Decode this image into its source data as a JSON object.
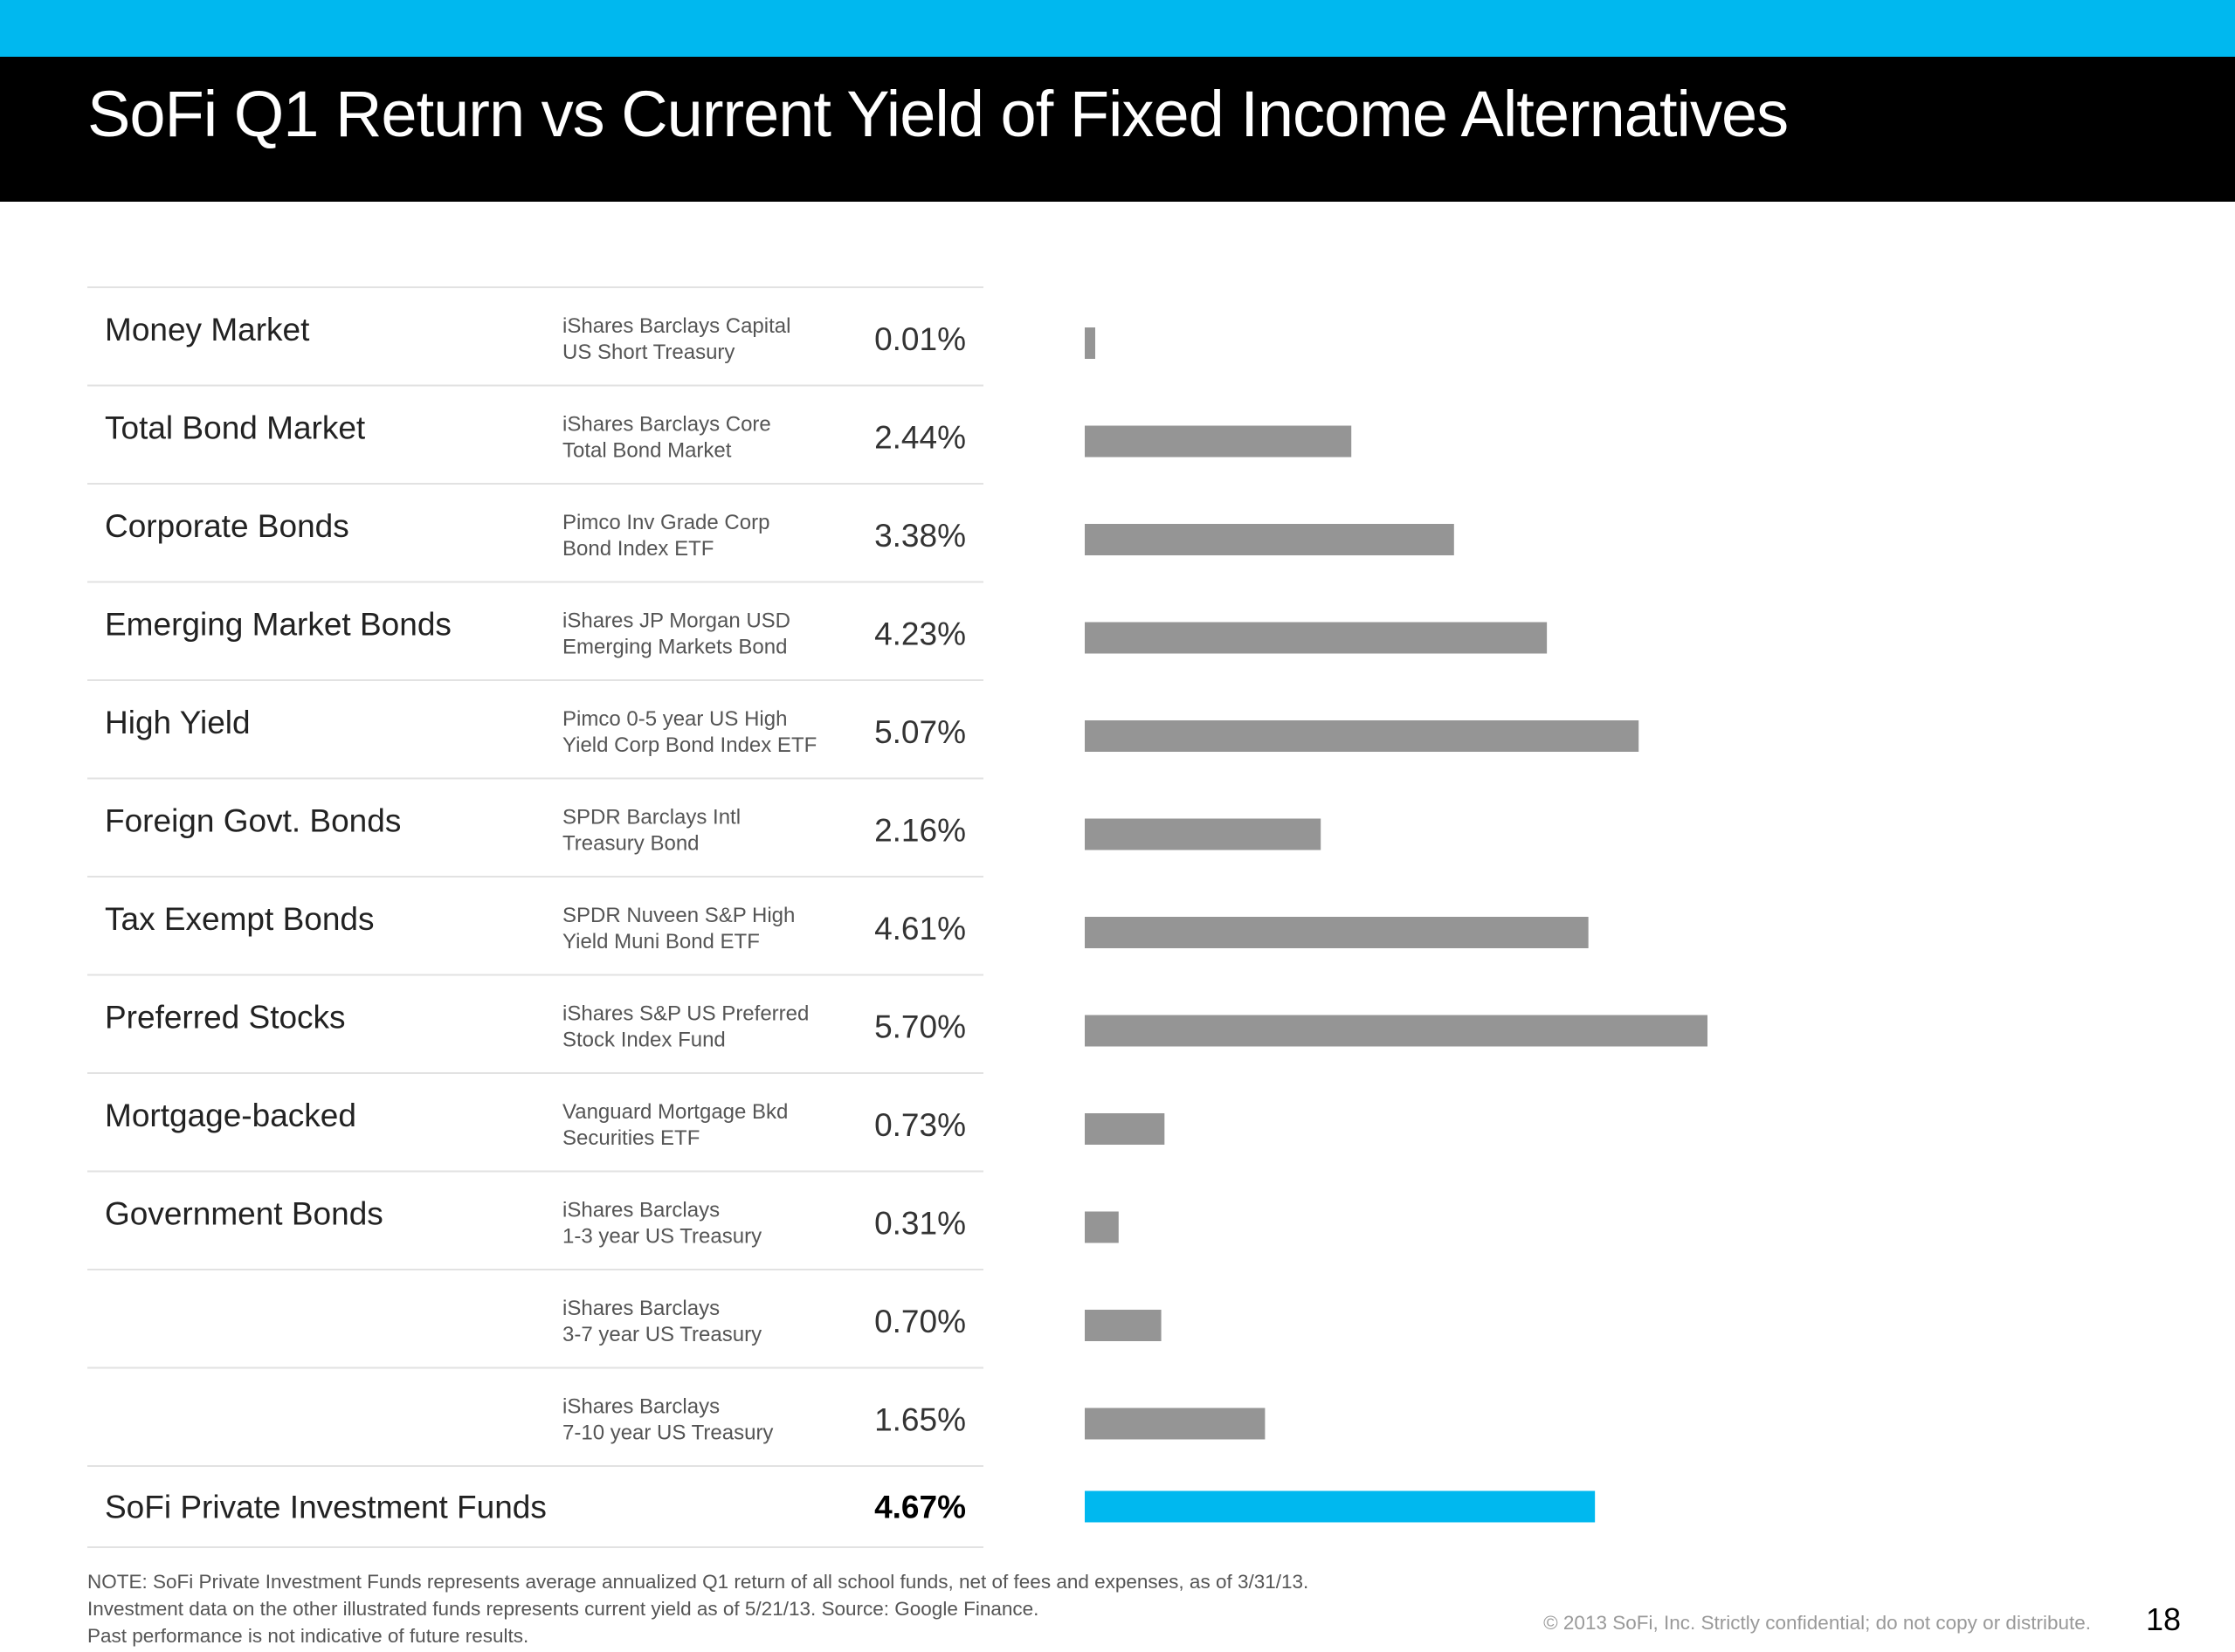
{
  "title": "SoFi Q1 Return vs Current Yield of Fixed Income Alternatives",
  "colors": {
    "top_accent": "#00b8ef",
    "title_bar": "#000000",
    "bar_default": "#959595",
    "bar_highlight": "#00b8ef",
    "row_divider": "#e2e2e2"
  },
  "chart_data": {
    "type": "bar",
    "orientation": "horizontal",
    "title": "SoFi Q1 Return vs Current Yield of Fixed Income Alternatives",
    "xlabel": "",
    "ylabel": "",
    "xlim": [
      0,
      5.7
    ],
    "grid": false,
    "legend": "none",
    "rows": [
      {
        "category": "Money Market",
        "fund_line1": "iShares Barclays Capital",
        "fund_line2": "US Short Treasury",
        "value": 0.01,
        "label": "0.01%"
      },
      {
        "category": "Total Bond Market",
        "fund_line1": "iShares Barclays Core",
        "fund_line2": "Total Bond Market",
        "value": 2.44,
        "label": "2.44%"
      },
      {
        "category": "Corporate Bonds",
        "fund_line1": "Pimco Inv Grade Corp",
        "fund_line2": "Bond Index ETF",
        "value": 3.38,
        "label": "3.38%"
      },
      {
        "category": "Emerging Market Bonds",
        "fund_line1": "iShares JP Morgan USD",
        "fund_line2": "Emerging Markets Bond",
        "value": 4.23,
        "label": "4.23%"
      },
      {
        "category": "High Yield",
        "fund_line1": "Pimco 0-5 year US High",
        "fund_line2": "Yield Corp Bond Index ETF",
        "value": 5.07,
        "label": "5.07%"
      },
      {
        "category": "Foreign Govt. Bonds",
        "fund_line1": "SPDR Barclays Intl",
        "fund_line2": "Treasury Bond",
        "value": 2.16,
        "label": "2.16%"
      },
      {
        "category": "Tax Exempt Bonds",
        "fund_line1": "SPDR Nuveen S&P High",
        "fund_line2": "Yield Muni Bond ETF",
        "value": 4.61,
        "label": "4.61%"
      },
      {
        "category": "Preferred Stocks",
        "fund_line1": "iShares S&P US Preferred",
        "fund_line2": "Stock Index Fund",
        "value": 5.7,
        "label": "5.70%"
      },
      {
        "category": "Mortgage-backed",
        "fund_line1": "Vanguard Mortgage Bkd",
        "fund_line2": "Securities ETF",
        "value": 0.73,
        "label": "0.73%"
      },
      {
        "category": "Government Bonds",
        "fund_line1": "iShares Barclays",
        "fund_line2": "1-3 year US Treasury",
        "value": 0.31,
        "label": "0.31%"
      },
      {
        "category": "",
        "fund_line1": "iShares Barclays",
        "fund_line2": "3-7 year US Treasury",
        "value": 0.7,
        "label": "0.70%"
      },
      {
        "category": "",
        "fund_line1": "iShares Barclays",
        "fund_line2": "7-10 year US Treasury",
        "value": 1.65,
        "label": "1.65%"
      },
      {
        "category": "SoFi Private Investment Funds",
        "fund_line1": "",
        "fund_line2": "",
        "value": 4.67,
        "label": "4.67%",
        "highlight": true
      }
    ]
  },
  "footer": {
    "note_line1": "NOTE: SoFi Private Investment Funds represents average annualized Q1 return of all school funds, net of fees and expenses, as of 3/31/13.",
    "note_line2": "Investment data on the other illustrated funds represents current yield as of  5/21/13. Source: Google Finance.",
    "note_line3": "Past performance is not indicative of future results.",
    "copyright": "© 2013 SoFi, Inc. Strictly confidential; do not copy or distribute.",
    "page_number": "18"
  }
}
